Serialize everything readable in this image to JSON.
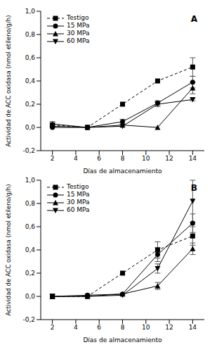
{
  "chart_data": [
    {
      "type": "line",
      "annotation": "A",
      "x_label": "Días de almacenamiento",
      "y_label": "Actividad de ACC oxidasa (nmol etileno/g/h)",
      "x": [
        2,
        5,
        8,
        11,
        14
      ],
      "xlim": [
        1,
        15
      ],
      "xticks": [
        2,
        4,
        6,
        8,
        10,
        12,
        14
      ],
      "ylim": [
        -0.2,
        1.0
      ],
      "yticks": [
        {
          "value": -0.2,
          "label": "-0,2"
        },
        {
          "value": 0,
          "label": "0,0"
        },
        {
          "value": 0.2,
          "label": "0,2"
        },
        {
          "value": 0.4,
          "label": "0,4"
        },
        {
          "value": 0.6,
          "label": "0,6"
        },
        {
          "value": 0.8,
          "label": "0,8"
        },
        {
          "value": 1.0,
          "label": "1,0"
        }
      ],
      "legend": "upper left",
      "series": [
        {
          "name": "Testigo",
          "color": "#000000",
          "marker": "square",
          "line_style": "dashed",
          "values": [
            0.02,
            0.0,
            0.2,
            0.4,
            0.52
          ],
          "errors": [
            0.02,
            null,
            null,
            null,
            0.08
          ]
        },
        {
          "name": "15 MPa",
          "color": "#000000",
          "marker": "circle",
          "line_style": "solid",
          "values": [
            0.0,
            0.0,
            0.05,
            0.21,
            0.39
          ],
          "errors": [
            null,
            null,
            0.02,
            0.02,
            0.05
          ]
        },
        {
          "name": "30 MPa",
          "color": "#000000",
          "marker": "triangle",
          "line_style": "solid",
          "values": [
            0.03,
            0.0,
            0.02,
            0.0,
            0.34
          ],
          "errors": [
            0.02,
            null,
            null,
            null,
            0.05
          ]
        },
        {
          "name": "60 MPa",
          "color": "#000000",
          "marker": "triangle-down",
          "line_style": "solid",
          "values": [
            0.01,
            0.0,
            0.01,
            0.2,
            0.24
          ],
          "errors": [
            null,
            null,
            null,
            0.02,
            0.01
          ]
        }
      ]
    },
    {
      "type": "line",
      "annotation": "B",
      "x_label": "Días de almacenamiento",
      "y_label": "Actividad de ACC oxidasa (nmol etileno/g/h)",
      "x": [
        2,
        5,
        8,
        11,
        14
      ],
      "xlim": [
        1,
        15
      ],
      "xticks": [
        2,
        4,
        6,
        8,
        10,
        12,
        14
      ],
      "ylim": [
        -0.2,
        1.0
      ],
      "yticks": [
        {
          "value": -0.2,
          "label": "-0,2"
        },
        {
          "value": 0,
          "label": "0,0"
        },
        {
          "value": 0.2,
          "label": "0,2"
        },
        {
          "value": 0.4,
          "label": "0,4"
        },
        {
          "value": 0.6,
          "label": "0,6"
        },
        {
          "value": 0.8,
          "label": "0,8"
        },
        {
          "value": 1.0,
          "label": "1,0"
        }
      ],
      "legend": "upper left",
      "series": [
        {
          "name": "Testigo",
          "color": "#000000",
          "marker": "square",
          "line_style": "dashed",
          "values": [
            0.0,
            0.0,
            0.2,
            0.4,
            0.52
          ],
          "errors": [
            0.02,
            null,
            null,
            0.07,
            0.08
          ]
        },
        {
          "name": "15 MPa",
          "color": "#000000",
          "marker": "circle",
          "line_style": "solid",
          "values": [
            0.0,
            0.01,
            0.02,
            0.36,
            0.63
          ],
          "errors": [
            null,
            null,
            null,
            0.06,
            0.08
          ]
        },
        {
          "name": "30 MPa",
          "color": "#000000",
          "marker": "triangle",
          "line_style": "solid",
          "values": [
            0.0,
            0.0,
            0.02,
            0.09,
            0.41
          ],
          "errors": [
            null,
            null,
            null,
            0.03,
            0.05
          ]
        },
        {
          "name": "60 MPa",
          "color": "#000000",
          "marker": "triangle-down",
          "line_style": "solid",
          "values": [
            0.0,
            0.0,
            0.01,
            0.24,
            0.82
          ],
          "errors": [
            null,
            null,
            null,
            0.04,
            0.18
          ]
        }
      ]
    }
  ]
}
